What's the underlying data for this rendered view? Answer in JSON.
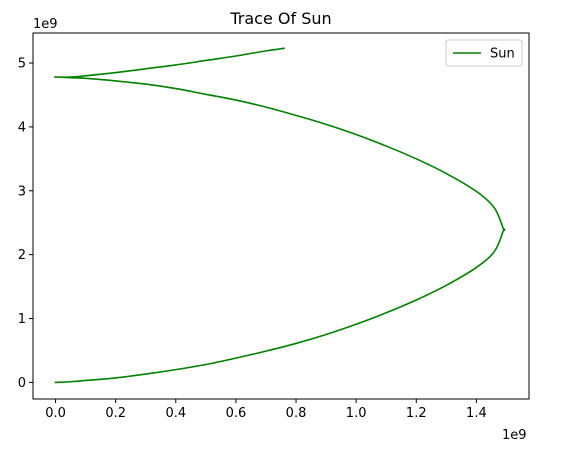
{
  "chart_data": {
    "type": "line",
    "title": "Trace Of Sun",
    "xlabel": "",
    "ylabel": "",
    "x_offset_text": "1e9",
    "y_offset_text": "1e9",
    "xlim": [
      -75000000.0,
      1575000000.0
    ],
    "ylim": [
      -260000000.0,
      5470000000.0
    ],
    "xticks": [
      0,
      200000000.0,
      400000000.0,
      600000000.0,
      800000000.0,
      1000000000.0,
      1200000000.0,
      1400000000.0
    ],
    "xtick_labels": [
      "0.0",
      "0.2",
      "0.4",
      "0.6",
      "0.8",
      "1.0",
      "1.2",
      "1.4"
    ],
    "yticks": [
      0,
      1000000000.0,
      2000000000.0,
      3000000000.0,
      4000000000.0,
      5000000000.0
    ],
    "ytick_labels": [
      "0",
      "1",
      "2",
      "3",
      "4",
      "5"
    ],
    "grid": false,
    "legend": {
      "position": "top-right"
    },
    "series": [
      {
        "name": "Sun",
        "color": "#008000",
        "x": [
          0,
          50000000.0,
          100000000.0,
          200000000.0,
          300000000.0,
          400000000.0,
          500000000.0,
          600000000.0,
          700000000.0,
          800000000.0,
          900000000.0,
          1000000000.0,
          1100000000.0,
          1200000000.0,
          1300000000.0,
          1400000000.0,
          1460000000.0,
          1490000000.0,
          1490000000.0,
          1460000000.0,
          1400000000.0,
          1300000000.0,
          1200000000.0,
          1100000000.0,
          1000000000.0,
          900000000.0,
          800000000.0,
          700000000.0,
          600000000.0,
          500000000.0,
          400000000.0,
          300000000.0,
          200000000.0,
          100000000.0,
          50000000.0,
          10000000.0,
          0,
          50000000.0,
          100000000.0,
          200000000.0,
          300000000.0,
          400000000.0,
          500000000.0,
          600000000.0,
          700000000.0,
          760000000.0
        ],
        "y": [
          0,
          10000000.0,
          30000000.0,
          70000000.0,
          130000000.0,
          200000000.0,
          280000000.0,
          380000000.0,
          490000000.0,
          610000000.0,
          750000000.0,
          910000000.0,
          1090000000.0,
          1290000000.0,
          1520000000.0,
          1800000000.0,
          2050000000.0,
          2380000000.0,
          2400000000.0,
          2730000000.0,
          2990000000.0,
          3270000000.0,
          3500000000.0,
          3700000000.0,
          3880000000.0,
          4040000000.0,
          4180000000.0,
          4310000000.0,
          4420000000.0,
          4510000000.0,
          4600000000.0,
          4670000000.0,
          4720000000.0,
          4760000000.0,
          4770000000.0,
          4780000000.0,
          4780000000.0,
          4780000000.0,
          4800000000.0,
          4850000000.0,
          4910000000.0,
          4970000000.0,
          5040000000.0,
          5110000000.0,
          5190000000.0,
          5230000000.0
        ]
      }
    ]
  }
}
